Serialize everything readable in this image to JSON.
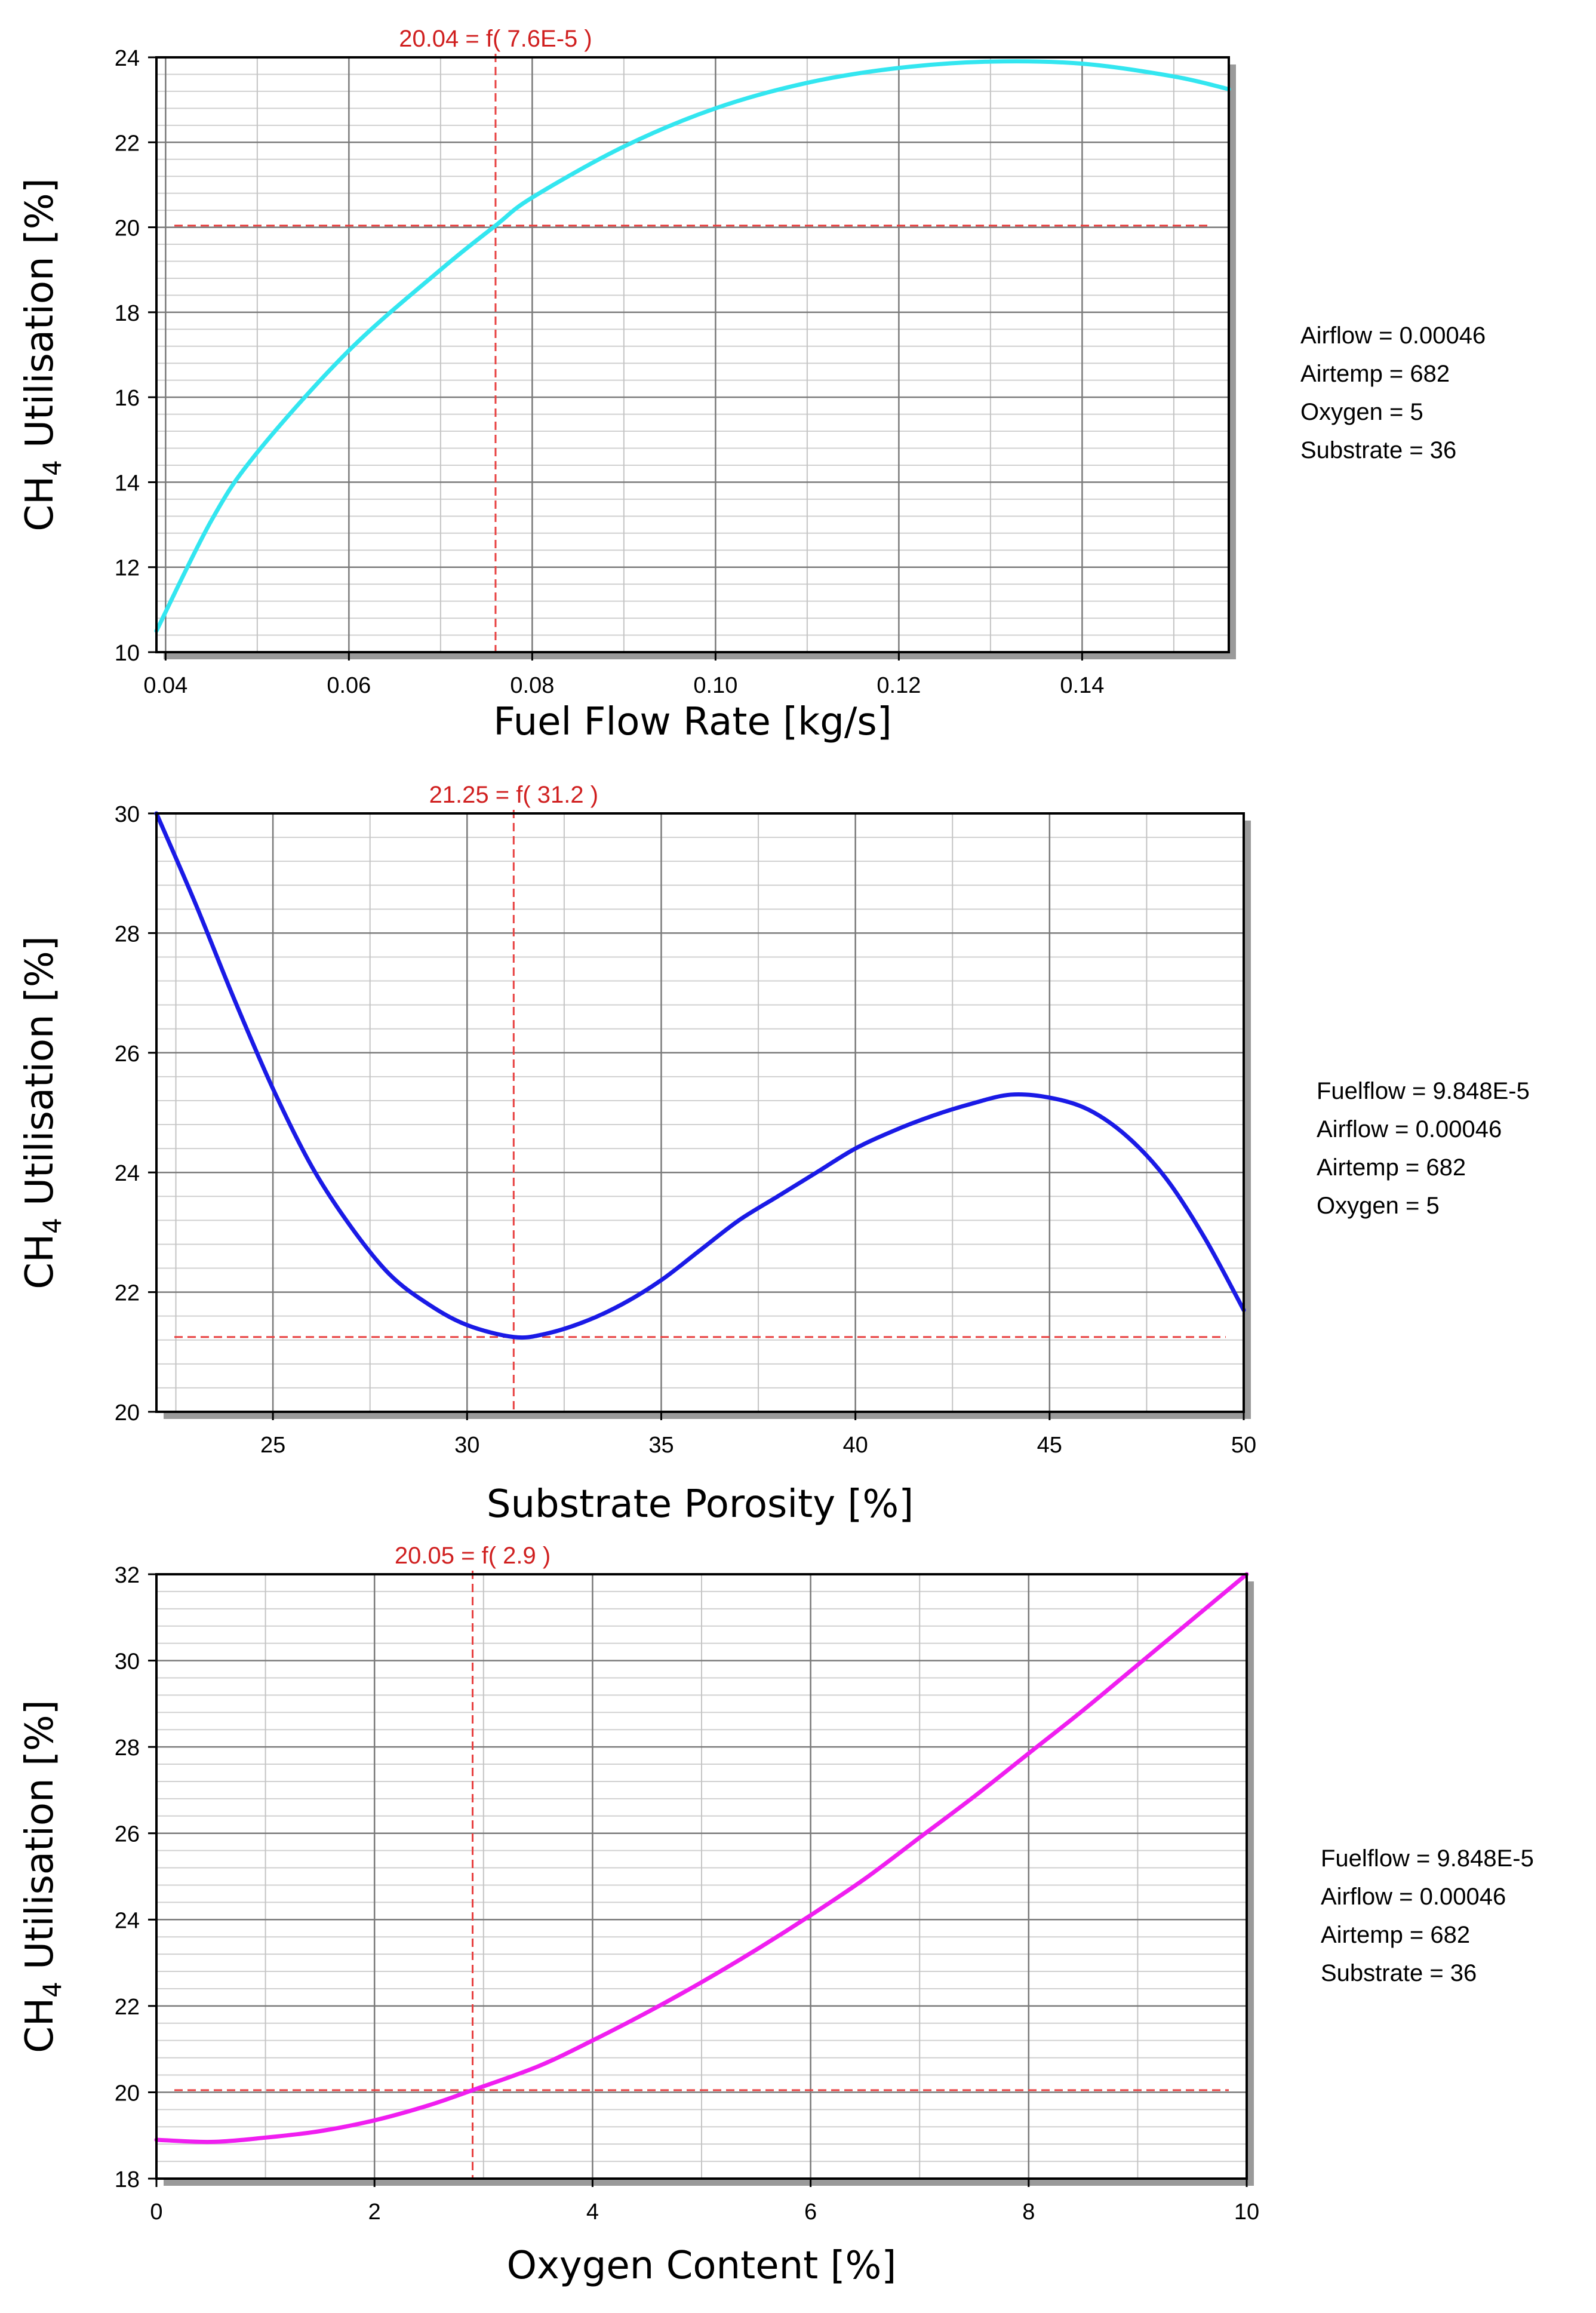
{
  "chart_data": [
    {
      "type": "line",
      "ylabel": "Utilisation [%]",
      "ylabel_prefix": "CH",
      "ylabel_sub": "4",
      "xlabel": "Fuel Flow Rate [kg/s]",
      "xlim": [
        0.039,
        0.156
      ],
      "ylim": [
        10,
        24
      ],
      "x_ticks": [
        0.04,
        0.06,
        0.08,
        0.1,
        0.12,
        0.14
      ],
      "x_tick_labels": [
        "0.04",
        "0.06",
        "0.08",
        "0.10",
        "0.12",
        "0.14"
      ],
      "y_ticks": [
        10,
        12,
        14,
        16,
        18,
        20,
        22,
        24
      ],
      "y_tick_labels": [
        "10",
        "12",
        "14",
        "16",
        "18",
        "20",
        "22",
        "24"
      ],
      "grid": true,
      "series": [
        {
          "name": "CH4 Utilisation",
          "color": "#33e6f0",
          "x": [
            0.039,
            0.045,
            0.05,
            0.06,
            0.07,
            0.076,
            0.08,
            0.09,
            0.1,
            0.11,
            0.12,
            0.13,
            0.14,
            0.15,
            0.156
          ],
          "y": [
            10.5,
            13.1,
            14.7,
            17.1,
            19.0,
            20.04,
            20.7,
            21.9,
            22.8,
            23.4,
            23.75,
            23.9,
            23.85,
            23.55,
            23.25
          ]
        }
      ],
      "crosshair": {
        "x": 0.076,
        "y": 20.04,
        "color": "#e84040"
      },
      "annotation": "20.04 = f( 7.6E-5 )",
      "params": [
        "Airflow = 0.00046",
        "Airtemp = 682",
        "Oxygen = 5",
        "Substrate = 36"
      ]
    },
    {
      "type": "line",
      "ylabel": "Utilisation [%]",
      "ylabel_prefix": "CH",
      "ylabel_sub": "4",
      "xlabel": "Substrate Porosity [%]",
      "xlim": [
        22,
        50
      ],
      "ylim": [
        20,
        30
      ],
      "x_ticks": [
        25,
        30,
        35,
        40,
        45,
        50
      ],
      "x_tick_labels": [
        "25",
        "30",
        "35",
        "40",
        "45",
        "50"
      ],
      "y_ticks": [
        20,
        22,
        24,
        26,
        28,
        30
      ],
      "y_tick_labels": [
        "20",
        "22",
        "24",
        "26",
        "28",
        "30"
      ],
      "grid": true,
      "series": [
        {
          "name": "CH4 Utilisation",
          "color": "#1a1ae6",
          "x": [
            22,
            23,
            24,
            25,
            26,
            27,
            28,
            29,
            30,
            31.2,
            32,
            33,
            34,
            35,
            36,
            37,
            38,
            39,
            40,
            41,
            42,
            43,
            44,
            45,
            46,
            47,
            48,
            49,
            50
          ],
          "y": [
            30.0,
            28.5,
            26.9,
            25.4,
            24.1,
            23.1,
            22.3,
            21.8,
            21.45,
            21.25,
            21.3,
            21.5,
            21.8,
            22.2,
            22.7,
            23.2,
            23.6,
            24.0,
            24.4,
            24.7,
            24.95,
            25.15,
            25.3,
            25.25,
            25.05,
            24.6,
            23.9,
            22.9,
            21.7
          ]
        }
      ],
      "crosshair": {
        "x": 31.2,
        "y": 21.25,
        "color": "#e84040"
      },
      "annotation": "21.25 = f( 31.2 )",
      "params": [
        "Fuelflow = 9.848E-5",
        "Airflow = 0.00046",
        "Airtemp = 682",
        "Oxygen = 5"
      ]
    },
    {
      "type": "line",
      "ylabel": "Utilisation [%]",
      "ylabel_prefix": "CH",
      "ylabel_sub": "4",
      "xlabel": "Oxygen Content [%]",
      "xlim": [
        0,
        10
      ],
      "ylim": [
        18,
        32
      ],
      "x_ticks": [
        0,
        2,
        4,
        6,
        8,
        10
      ],
      "x_tick_labels": [
        "0",
        "2",
        "4",
        "6",
        "8",
        "10"
      ],
      "y_ticks": [
        18,
        20,
        22,
        24,
        26,
        28,
        30,
        32
      ],
      "y_tick_labels": [
        "18",
        "20",
        "22",
        "24",
        "26",
        "28",
        "30",
        "32"
      ],
      "grid": true,
      "series": [
        {
          "name": "CH4 Utilisation",
          "color": "#f01ef0",
          "x": [
            0,
            0.5,
            1,
            1.5,
            2,
            2.5,
            2.9,
            3.5,
            4,
            4.5,
            5,
            5.5,
            6,
            6.5,
            7,
            7.5,
            8,
            8.5,
            9,
            9.5,
            10
          ],
          "y": [
            18.9,
            18.85,
            18.95,
            19.1,
            19.35,
            19.7,
            20.05,
            20.6,
            21.2,
            21.85,
            22.55,
            23.3,
            24.1,
            24.95,
            25.9,
            26.85,
            27.85,
            28.85,
            29.9,
            30.95,
            32.0
          ]
        }
      ],
      "crosshair": {
        "x": 2.9,
        "y": 20.05,
        "color": "#e84040"
      },
      "annotation": "20.05 = f( 2.9 )",
      "params": [
        "Fuelflow = 9.848E-5",
        "Airflow = 0.00046",
        "Airtemp = 682",
        "Substrate = 36"
      ]
    }
  ]
}
